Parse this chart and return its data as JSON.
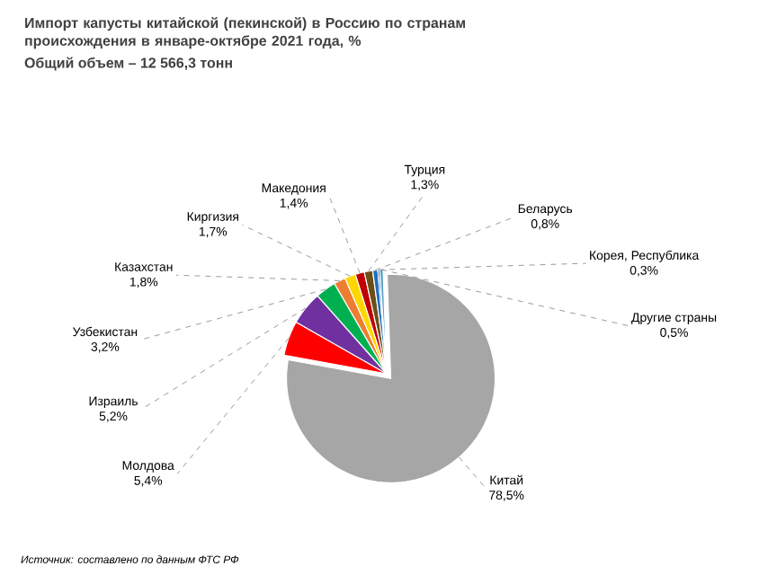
{
  "chart_data": {
    "type": "pie",
    "title": "Импорт капусты китайской (пекинской) в Россию по странам происхождения в январе-октябре 2021 года, %",
    "subtitle": "Общий объем – 12 566,3 тонн",
    "categories": [
      "Китай",
      "Молдова",
      "Израиль",
      "Узбекистан",
      "Казахстан",
      "Киргизия",
      "Македония",
      "Турция",
      "Беларусь",
      "Корея, Республика",
      "Другие страны"
    ],
    "values": [
      78.5,
      5.4,
      5.2,
      3.2,
      1.8,
      1.7,
      1.4,
      1.3,
      0.8,
      0.3,
      0.5
    ],
    "colors": [
      "#a6a6a6",
      "#ff0000",
      "#7030a0",
      "#00b050",
      "#ed7d31",
      "#ffd700",
      "#c00000",
      "#6b4e16",
      "#1f6fc0",
      "#2e5c8a",
      "#4f9fc8"
    ],
    "value_labels": [
      "78,5%",
      "5,4%",
      "5,2%",
      "3,2%",
      "1,8%",
      "1,7%",
      "1,4%",
      "1,3%",
      "0,8%",
      "0,3%",
      "0,5%"
    ],
    "annotations": [
      "Источник: составлено по данным ФТС РФ"
    ]
  }
}
